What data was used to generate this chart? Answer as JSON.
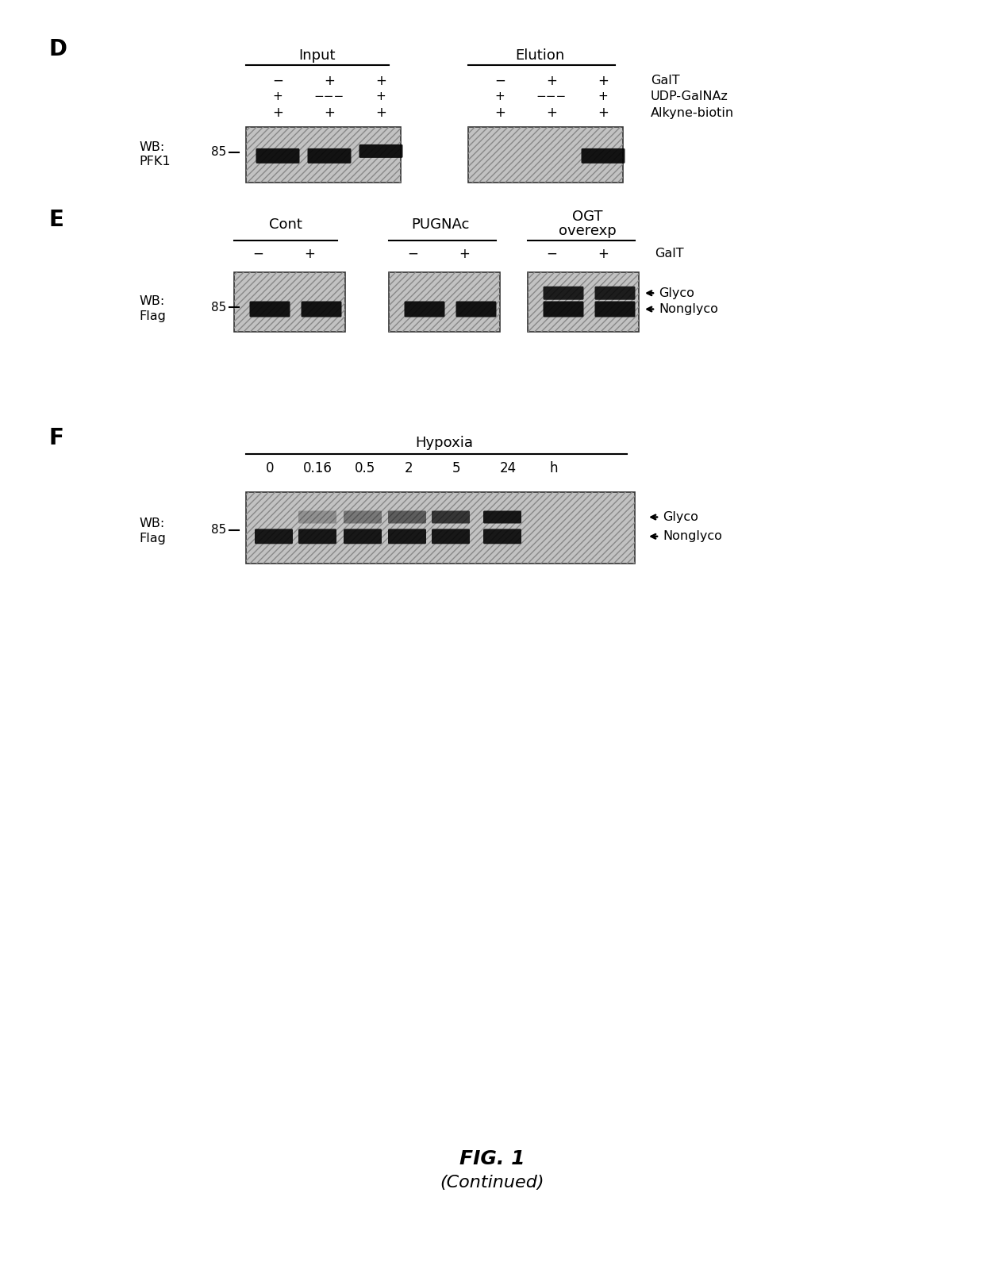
{
  "bg_color": "#ffffff",
  "gel_color": "#c0c0c0",
  "panel_D": {
    "label": "D",
    "title_input": "Input",
    "title_elution": "Elution",
    "row_labels": [
      "GalT",
      "UDP-GalNAz",
      "Alkyne-biotin"
    ],
    "input_galT": [
      "−",
      "+",
      "+"
    ],
    "input_udp": [
      "+",
      "−−−",
      "+"
    ],
    "input_alkyne": [
      "+",
      "+",
      "+"
    ],
    "elution_galT": [
      "−",
      "+",
      "+"
    ],
    "elution_udp": [
      "+",
      "−−−",
      "+"
    ],
    "elution_alkyne": [
      "+",
      "+",
      "+"
    ],
    "wb_label1": "WB:",
    "wb_label2": "PFK1",
    "marker": "85"
  },
  "panel_E": {
    "label": "E",
    "group1": "Cont",
    "group2": "PUGNAc",
    "group3a": "OGT",
    "group3b": "overexp",
    "galT_signs": [
      "−",
      "+",
      "−",
      "+",
      "−",
      "+"
    ],
    "galT_label": "GalT",
    "wb_label1": "WB:",
    "wb_label2": "Flag",
    "marker": "85",
    "glyco_label": "Glyco",
    "nonglyco_label": "Nonglyco"
  },
  "panel_F": {
    "label": "F",
    "title": "Hypoxia",
    "time_labels": [
      "0",
      "0.16",
      "0.5",
      "2",
      "5",
      "24",
      "h"
    ],
    "wb_label1": "WB:",
    "wb_label2": "Flag",
    "marker": "85",
    "glyco_label": "Glyco",
    "nonglyco_label": "Nonglyco"
  },
  "fig_label": "FIG. 1",
  "fig_sublabel": "(Continued)"
}
